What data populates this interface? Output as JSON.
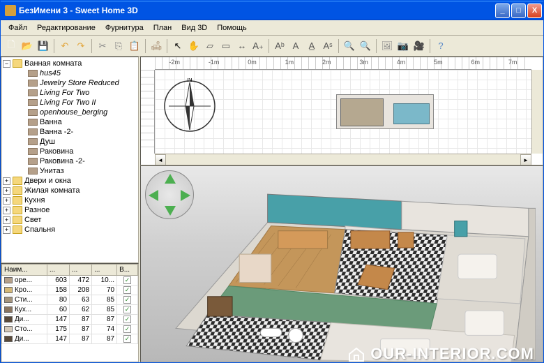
{
  "window": {
    "title": "БезИмени 3 - Sweet Home 3D"
  },
  "titlebar_buttons": {
    "min": "_",
    "max": "□",
    "close": "X"
  },
  "menu": [
    "Файл",
    "Редактирование",
    "Фурнитура",
    "План",
    "Вид 3D",
    "Помощь"
  ],
  "toolbar_icons": [
    {
      "name": "new-icon",
      "glyph": "🗋",
      "color": "#fff"
    },
    {
      "name": "open-icon",
      "glyph": "📂",
      "color": "#f5d77c"
    },
    {
      "name": "save-icon",
      "glyph": "💾",
      "color": "#6a8bc9"
    },
    {
      "sep": true
    },
    {
      "name": "undo-icon",
      "glyph": "↶",
      "color": "#e2a63c"
    },
    {
      "name": "redo-icon",
      "glyph": "↷",
      "color": "#e2a63c"
    },
    {
      "sep": true
    },
    {
      "name": "cut-icon",
      "glyph": "✂",
      "color": "#888"
    },
    {
      "name": "copy-icon",
      "glyph": "⎘",
      "color": "#888"
    },
    {
      "name": "paste-icon",
      "glyph": "📋",
      "color": "#c9a16a"
    },
    {
      "sep": true
    },
    {
      "name": "furniture-icon",
      "glyph": "🛋",
      "color": "#a68a6d"
    },
    {
      "sep": true
    },
    {
      "name": "pointer-icon",
      "glyph": "↖",
      "color": "#000"
    },
    {
      "name": "pan-icon",
      "glyph": "✋",
      "color": "#e2b88a"
    },
    {
      "name": "wall-icon",
      "glyph": "▱",
      "color": "#555"
    },
    {
      "name": "room-icon",
      "glyph": "▭",
      "color": "#555"
    },
    {
      "name": "dimension-icon",
      "glyph": "↔",
      "color": "#555"
    },
    {
      "name": "text-icon",
      "glyph": "A₊",
      "color": "#555"
    },
    {
      "sep": true
    },
    {
      "name": "text-b-icon",
      "glyph": "Aᵇ",
      "color": "#555"
    },
    {
      "name": "text-a-icon",
      "glyph": "A",
      "color": "#555"
    },
    {
      "name": "text-u-icon",
      "glyph": "A̲",
      "color": "#555"
    },
    {
      "name": "text-s-icon",
      "glyph": "Aˢ",
      "color": "#555"
    },
    {
      "sep": true
    },
    {
      "name": "zoom-in-icon",
      "glyph": "🔍",
      "color": "#5a8ac9"
    },
    {
      "name": "zoom-out-icon",
      "glyph": "🔍",
      "color": "#5a8ac9"
    },
    {
      "sep": true
    },
    {
      "name": "background-icon",
      "glyph": "🖼",
      "color": "#888"
    },
    {
      "name": "photo-icon",
      "glyph": "📷",
      "color": "#444"
    },
    {
      "name": "video-icon",
      "glyph": "🎥",
      "color": "#444"
    },
    {
      "sep": true
    },
    {
      "name": "help-icon",
      "glyph": "?",
      "color": "#5a8ac9"
    }
  ],
  "tree": {
    "root": {
      "label": "Ванная комната",
      "expanded": true,
      "children": [
        {
          "label": "hus45",
          "italic": true,
          "icon": "model"
        },
        {
          "label": "Jewelry Store Reduced",
          "italic": true,
          "icon": "model"
        },
        {
          "label": "Living For Two",
          "italic": true,
          "icon": "model"
        },
        {
          "label": "Living For Two II",
          "italic": true,
          "icon": "model"
        },
        {
          "label": "openhouse_berging",
          "italic": true,
          "icon": "model"
        },
        {
          "label": "Ванна",
          "icon": "bath"
        },
        {
          "label": "Ванна -2-",
          "icon": "bath"
        },
        {
          "label": "Душ",
          "icon": "shower"
        },
        {
          "label": "Раковина",
          "icon": "sink"
        },
        {
          "label": "Раковина -2-",
          "icon": "sink"
        },
        {
          "label": "Унитаз",
          "icon": "toilet"
        }
      ]
    },
    "siblings": [
      {
        "label": "Двери и окна"
      },
      {
        "label": "Жилая комната"
      },
      {
        "label": "Кухня"
      },
      {
        "label": "Разное"
      },
      {
        "label": "Свет"
      },
      {
        "label": "Спальня"
      }
    ]
  },
  "table": {
    "headers": [
      "Наим...",
      "...",
      "...",
      "...",
      "В..."
    ],
    "rows": [
      {
        "icon": "#b5a08a",
        "name": "ope...",
        "c1": 603,
        "c2": 472,
        "c3": "10...",
        "v": true
      },
      {
        "icon": "#d4b878",
        "name": "Кро...",
        "c1": 158,
        "c2": 208,
        "c3": 70,
        "v": true
      },
      {
        "icon": "#a5957e",
        "name": "Сти...",
        "c1": 80,
        "c2": 63,
        "c3": 85,
        "v": true
      },
      {
        "icon": "#8a7560",
        "name": "Кух...",
        "c1": 60,
        "c2": 62,
        "c3": 85,
        "v": true
      },
      {
        "icon": "#5a4a3a",
        "name": "Ди...",
        "c1": 147,
        "c2": 87,
        "c3": 87,
        "v": true
      },
      {
        "icon": "#d4c8b8",
        "name": "Сто...",
        "c1": 175,
        "c2": 87,
        "c3": 74,
        "v": true
      },
      {
        "icon": "#5a4a3a",
        "name": "Ди...",
        "c1": 147,
        "c2": 87,
        "c3": 87,
        "v": true
      }
    ]
  },
  "ruler": [
    "-2m",
    "-1m",
    "0m",
    "1m",
    "2m",
    "3m",
    "4m",
    "5m",
    "6m",
    "7m"
  ],
  "compass_label": "N",
  "watermark": "OUR-INTERIOR.COM",
  "colors": {
    "titlebar_start": "#3a93ff",
    "titlebar_end": "#0054e3",
    "chrome": "#ece9d8",
    "border": "#aca899",
    "nav_arrow": "#4caf50",
    "check": "#2a8a2a",
    "floor_wood": "#c4965a",
    "floor_green": "#6b9b7a",
    "wall": "#e8e4de"
  }
}
